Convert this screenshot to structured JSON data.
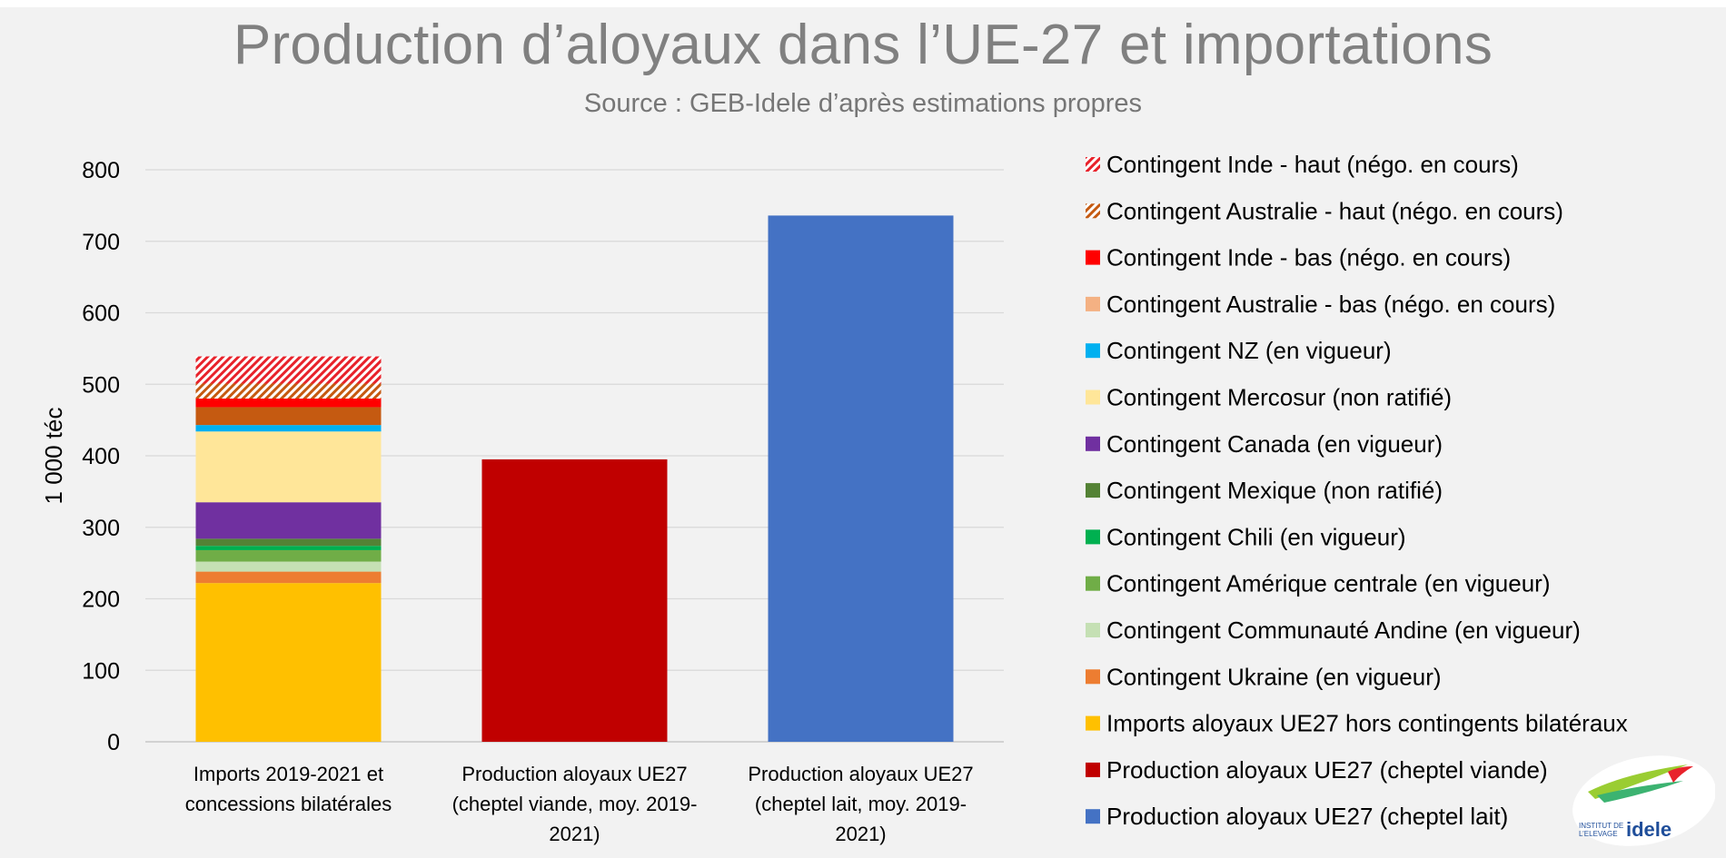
{
  "title": "Production d’aloyaux dans l’UE-27 et importations",
  "subtitle": "Source : GEB-Idele d’après estimations propres",
  "logo": {
    "line1": "INSTITUT DE",
    "line2": "L’ELEVAGE",
    "brand": "idele"
  },
  "chart_data": {
    "type": "bar",
    "stacked": true,
    "ylabel": "1 000 téc",
    "xlabel": "",
    "ylim": [
      0,
      800
    ],
    "yticks": [
      0,
      100,
      200,
      300,
      400,
      500,
      600,
      700,
      800
    ],
    "grid": true,
    "legend_position": "right",
    "categories": [
      [
        "Imports 2019-2021 et",
        "concessions bilatérales"
      ],
      [
        "Production aloyaux UE27",
        "(cheptel viande, moy. 2019-",
        "2021)"
      ],
      [
        "Production aloyaux UE27",
        "(cheptel lait, moy. 2019-",
        "2021)"
      ]
    ],
    "series": [
      {
        "name": "Imports aloyaux UE27 hors contingents bilatéraux",
        "color": "#ffc000",
        "values": [
          222,
          0,
          0
        ]
      },
      {
        "name": "Contingent Ukraine (en vigueur)",
        "color": "#ed7d31",
        "values": [
          16,
          0,
          0
        ]
      },
      {
        "name": "Contingent Communauté Andine (en vigueur)",
        "color": "#c5e0b4",
        "values": [
          14,
          0,
          0
        ]
      },
      {
        "name": "Contingent Amérique centrale (en vigueur)",
        "color": "#70ad47",
        "values": [
          16,
          0,
          0
        ]
      },
      {
        "name": "Contingent Chili (en vigueur)",
        "color": "#00b050",
        "values": [
          6,
          0,
          0
        ]
      },
      {
        "name": "Contingent Mexique (non ratifié)",
        "color": "#548235",
        "values": [
          10,
          0,
          0
        ]
      },
      {
        "name": "Contingent Canada (en vigueur)",
        "color": "#7030a0",
        "values": [
          51,
          0,
          0
        ]
      },
      {
        "name": "Contingent Mercosur (non ratifié)",
        "color": "#ffe699",
        "values": [
          99,
          0,
          0
        ]
      },
      {
        "name": "Contingent NZ (en vigueur)",
        "color": "#00b0f0",
        "values": [
          9,
          0,
          0
        ]
      },
      {
        "name": "Contingent Australie - bas (négo. en cours)",
        "color": "#c55a11",
        "values": [
          25,
          0,
          0
        ]
      },
      {
        "name": "Contingent Inde - bas (négo. en cours)",
        "color": "#ff0000",
        "values": [
          12,
          0,
          0
        ]
      },
      {
        "name": "Contingent Australie - haut  (négo. en cours)",
        "color": "#c55a11",
        "pattern": "hatch",
        "values": [
          21,
          0,
          0
        ]
      },
      {
        "name": "Contingent Inde - haut (négo. en cours)",
        "color": "#e8222b",
        "pattern": "hatch",
        "values": [
          38,
          0,
          0
        ]
      },
      {
        "name": "Production aloyaux UE27 (cheptel viande)",
        "color": "#c00000",
        "values": [
          0,
          395,
          0
        ]
      },
      {
        "name": "Production aloyaux UE27 (cheptel lait)",
        "color": "#4472c4",
        "values": [
          0,
          0,
          736
        ]
      }
    ],
    "legend": [
      {
        "name": "Contingent Inde - haut (négo. en cours)",
        "color": "#e8222b",
        "pattern": "hatch"
      },
      {
        "name": "Contingent Australie - haut  (négo. en cours)",
        "color": "#c55a11",
        "pattern": "hatch"
      },
      {
        "name": "Contingent Inde - bas (négo. en cours)",
        "color": "#ff0000"
      },
      {
        "name": "Contingent Australie - bas (négo. en cours)",
        "color": "#f4b183"
      },
      {
        "name": "Contingent NZ (en vigueur)",
        "color": "#00b0f0"
      },
      {
        "name": "Contingent Mercosur (non ratifié)",
        "color": "#ffe699"
      },
      {
        "name": "Contingent Canada (en vigueur)",
        "color": "#7030a0"
      },
      {
        "name": "Contingent Mexique (non ratifié)",
        "color": "#548235"
      },
      {
        "name": "Contingent Chili (en vigueur)",
        "color": "#00b050"
      },
      {
        "name": "Contingent Amérique centrale (en vigueur)",
        "color": "#70ad47"
      },
      {
        "name": "Contingent Communauté Andine (en vigueur)",
        "color": "#c5e0b4"
      },
      {
        "name": "Contingent Ukraine (en vigueur)",
        "color": "#ed7d31"
      },
      {
        "name": "Imports aloyaux UE27 hors contingents bilatéraux",
        "color": "#ffc000"
      },
      {
        "name": "Production aloyaux UE27 (cheptel viande)",
        "color": "#c00000"
      },
      {
        "name": "Production aloyaux UE27 (cheptel lait)",
        "color": "#4472c4"
      }
    ]
  }
}
